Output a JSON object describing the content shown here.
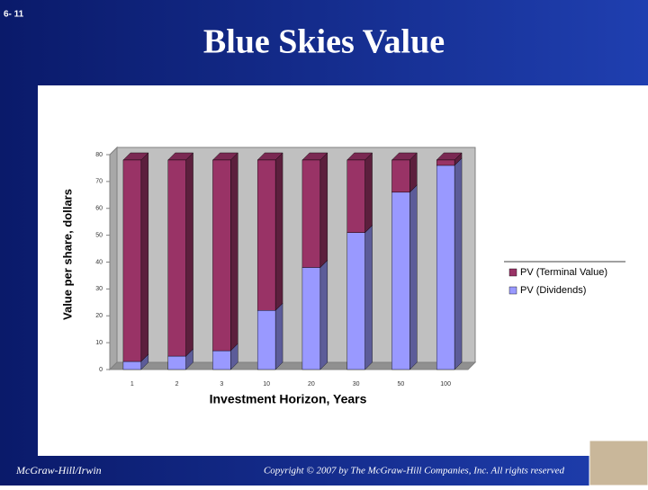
{
  "slide_number": "6- 11",
  "footer_left": "McGraw-Hill/Irwin",
  "footer_right": "Copyright © 2007 by The McGraw-Hill Companies, Inc. All rights reserved",
  "chart_data": {
    "type": "stacked_bar",
    "title": "Blue Skies Value",
    "x_label": "Investment Horizon, Years",
    "y_label": "Value per share, dollars",
    "categories": [
      "1",
      "2",
      "3",
      "10",
      "20",
      "30",
      "50",
      "100"
    ],
    "series": [
      {
        "name": "PV (Terminal Value)",
        "color": "#993366",
        "values": [
          75,
          73,
          71,
          56,
          40,
          27,
          12,
          2
        ]
      },
      {
        "name": "PV (Dividends)",
        "color": "#9999ff",
        "values": [
          3,
          5,
          7,
          22,
          38,
          51,
          66,
          76
        ]
      }
    ],
    "stack_order": "bottom-up from last series",
    "ylim": [
      0,
      80
    ],
    "yticks": [
      0,
      10,
      20,
      30,
      40,
      50,
      60,
      70,
      80
    ],
    "grid": false,
    "legend": "right"
  }
}
